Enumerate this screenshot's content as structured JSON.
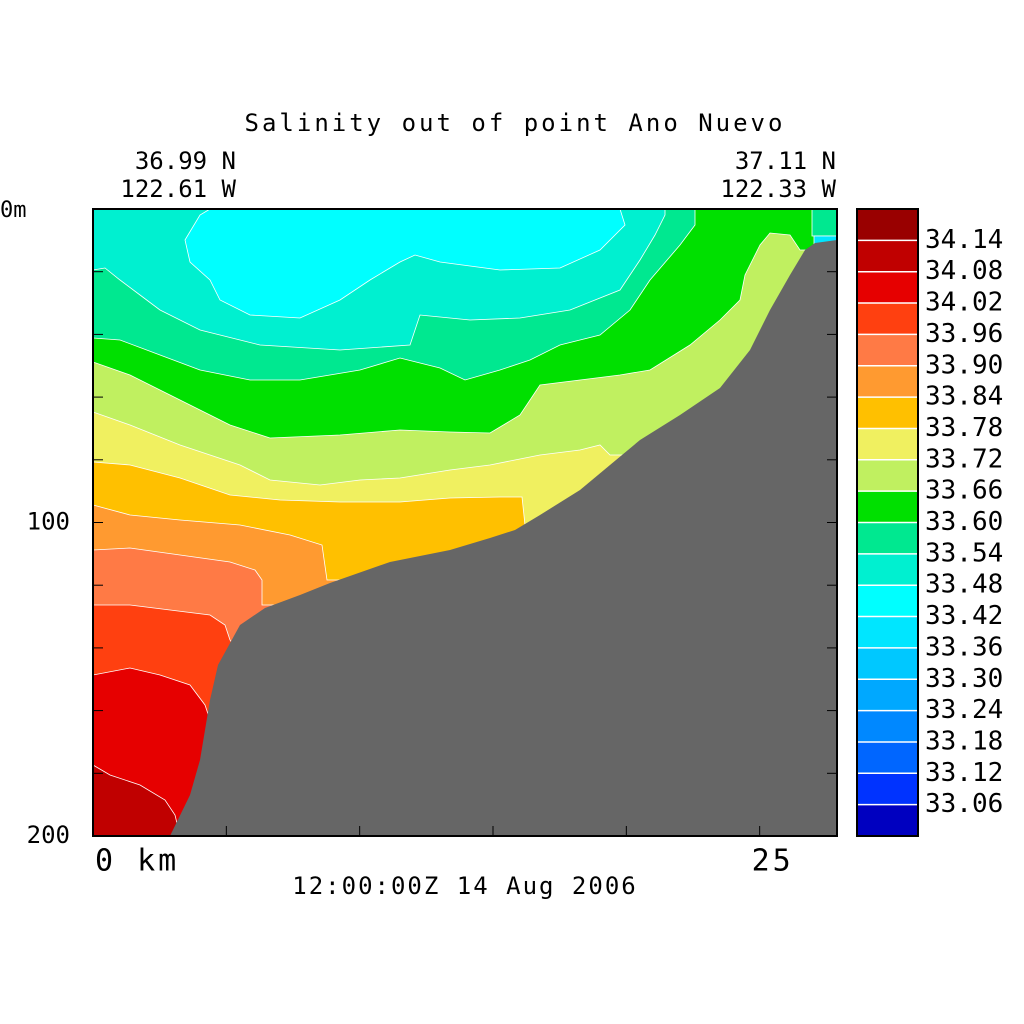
{
  "chart_data": {
    "type": "contour",
    "title": "Salinity out of point Ano Nuevo",
    "start_lat": "36.99 N",
    "start_lon": "122.61 W",
    "end_lat": "37.11 N",
    "end_lon": "122.33 W",
    "time": "12:00:00Z 14 Aug 2006",
    "xlim": [
      0,
      27.9
    ],
    "xticks": [
      {
        "value": 0,
        "label": "0 km"
      },
      25
    ],
    "xminor": [
      5,
      10,
      15,
      20
    ],
    "ylim": [
      0,
      200
    ],
    "y_inverted": true,
    "yticks": [
      {
        "value": 0,
        "label": "0m"
      },
      100,
      200
    ],
    "yminor": [
      20,
      40,
      60,
      80,
      120,
      140,
      160,
      180
    ],
    "land_color": "#666666",
    "colorbar": {
      "levels": [
        33.06,
        33.12,
        33.18,
        33.24,
        {
          "value": 33.3,
          "label": "33.30"
        },
        33.36,
        33.42,
        33.48,
        33.54,
        {
          "value": 33.6,
          "label": "33.60"
        },
        33.66,
        33.72,
        33.78,
        33.84,
        {
          "value": 33.9,
          "label": "33.90"
        },
        33.96,
        34.02,
        34.08,
        34.14
      ],
      "colors": [
        "#0000c0",
        "#0033ff",
        "#0066ff",
        "#0088ff",
        "#00a8ff",
        "#00c8ff",
        "#00e6ff",
        "#00ffff",
        "#00f0d0",
        "#00e890",
        "#00e000",
        "#c0f060",
        "#f0f060",
        "#ffc000",
        "#ff9a30",
        "#ff7a45",
        "#ff4010",
        "#e60000",
        "#c00000",
        "#990000"
      ]
    }
  }
}
